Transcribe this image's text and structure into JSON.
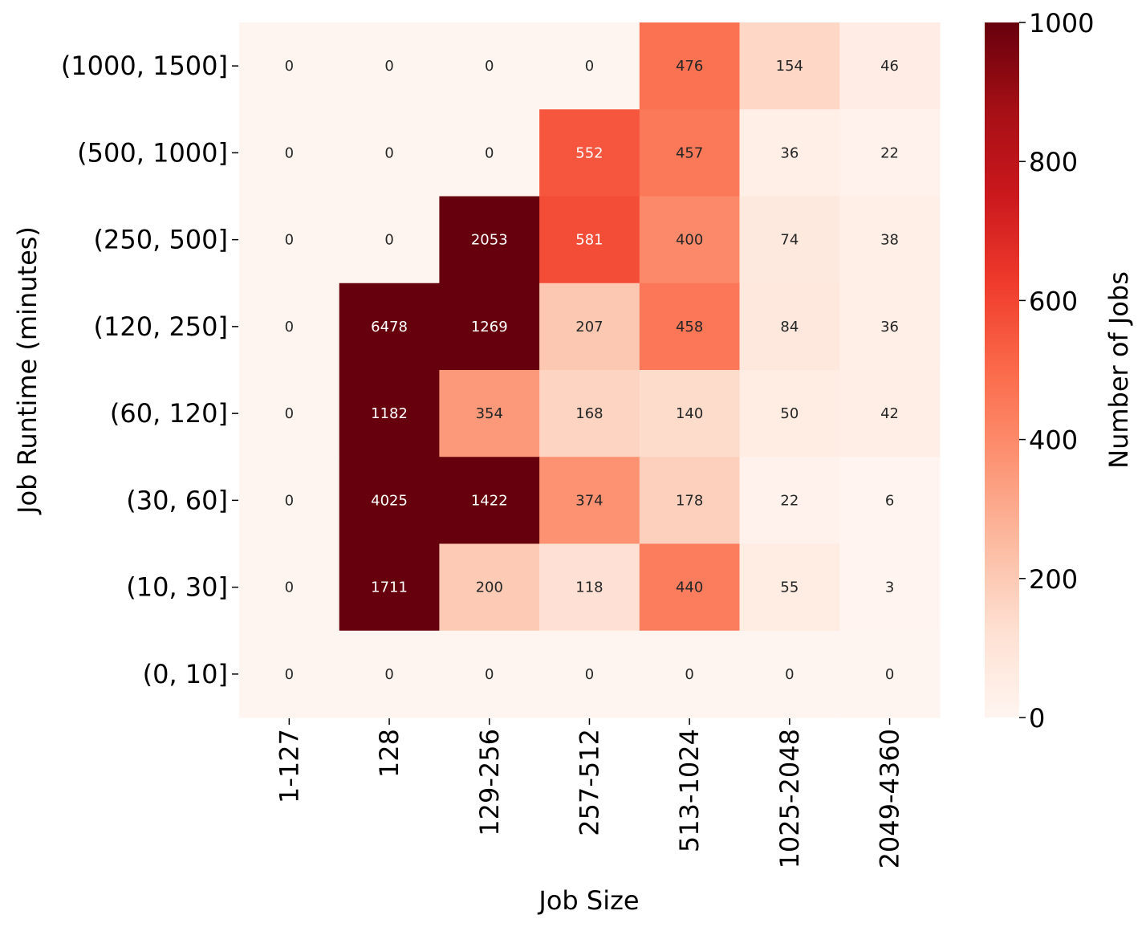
{
  "chart_data": {
    "type": "heatmap",
    "xlabel": "Job Size",
    "ylabel": "Job Runtime (minutes)",
    "x_categories": [
      "1-127",
      "128",
      "129-256",
      "257-512",
      "513-1024",
      "1025-2048",
      "2049-4360"
    ],
    "y_categories": [
      "(1000, 1500]",
      "(500, 1000]",
      "(250, 500]",
      "(120, 250]",
      "(60, 120]",
      "(30, 60]",
      "(10, 30]",
      "(0, 10]"
    ],
    "values": [
      [
        0,
        0,
        0,
        0,
        476,
        154,
        46
      ],
      [
        0,
        0,
        0,
        552,
        457,
        36,
        22
      ],
      [
        0,
        0,
        2053,
        581,
        400,
        74,
        38
      ],
      [
        0,
        6478,
        1269,
        207,
        458,
        84,
        36
      ],
      [
        0,
        1182,
        354,
        168,
        140,
        50,
        42
      ],
      [
        0,
        4025,
        1422,
        374,
        178,
        22,
        6
      ],
      [
        0,
        1711,
        200,
        118,
        440,
        55,
        3
      ],
      [
        0,
        0,
        0,
        0,
        0,
        0,
        0
      ]
    ],
    "colorbar": {
      "label": "Number of Jobs",
      "vmin": 0,
      "vmax": 1000,
      "ticks": [
        0,
        200,
        400,
        600,
        800,
        1000
      ],
      "colormap": "Reds",
      "colors": [
        "#fff5f0",
        "#fee0d2",
        "#fcbba1",
        "#fc9272",
        "#fb6a4a",
        "#ef3b2c",
        "#cb181d",
        "#a50f15",
        "#67000d"
      ]
    }
  }
}
